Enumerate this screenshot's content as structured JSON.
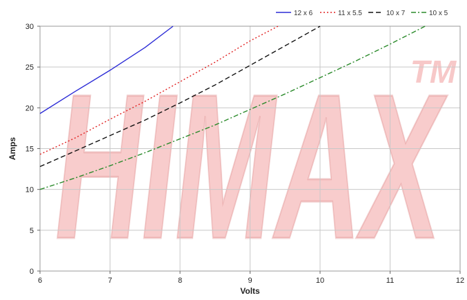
{
  "chart_data": {
    "type": "line",
    "xlabel": "Volts",
    "ylabel": "Amps",
    "xlim": [
      6,
      12
    ],
    "ylim": [
      0,
      30
    ],
    "x_ticks": [
      "6",
      "7",
      "8",
      "9",
      "10",
      "11",
      "12"
    ],
    "y_ticks": [
      "0",
      "5",
      "10",
      "15",
      "20",
      "25",
      "30"
    ],
    "grid": true,
    "legend_position": "top-right",
    "watermark": "HIMAX",
    "watermark_mark": "TM",
    "watermark_color": "#f2a3a3",
    "series": [
      {
        "name": "12 x 6",
        "color": "#2b2bd6",
        "dash": "solid",
        "x": [
          6.0,
          6.5,
          7.0,
          7.5,
          7.9
        ],
        "y": [
          19.3,
          22.0,
          24.6,
          27.4,
          30.0
        ]
      },
      {
        "name": "11 x 5.5",
        "color": "#e02020",
        "dash": "dot",
        "x": [
          6.0,
          6.5,
          7.0,
          7.5,
          8.0,
          8.5,
          9.0,
          9.4
        ],
        "y": [
          14.3,
          16.3,
          18.6,
          20.8,
          23.2,
          25.6,
          28.2,
          30.0
        ]
      },
      {
        "name": "10 x 7",
        "color": "#111111",
        "dash": "dash",
        "x": [
          6.0,
          6.5,
          7.0,
          7.5,
          8.0,
          8.5,
          9.0,
          9.5,
          10.0
        ],
        "y": [
          12.8,
          14.7,
          16.6,
          18.5,
          20.6,
          22.8,
          25.2,
          27.6,
          30.0
        ]
      },
      {
        "name": "10 x 5",
        "color": "#2a8a2a",
        "dash": "dashdot",
        "x": [
          6.0,
          6.5,
          7.0,
          7.5,
          8.0,
          8.5,
          9.0,
          9.5,
          10.0,
          10.5,
          11.0,
          11.5
        ],
        "y": [
          10.0,
          11.4,
          12.9,
          14.5,
          16.2,
          17.9,
          19.8,
          21.7,
          23.7,
          25.7,
          27.8,
          30.0
        ]
      }
    ]
  }
}
